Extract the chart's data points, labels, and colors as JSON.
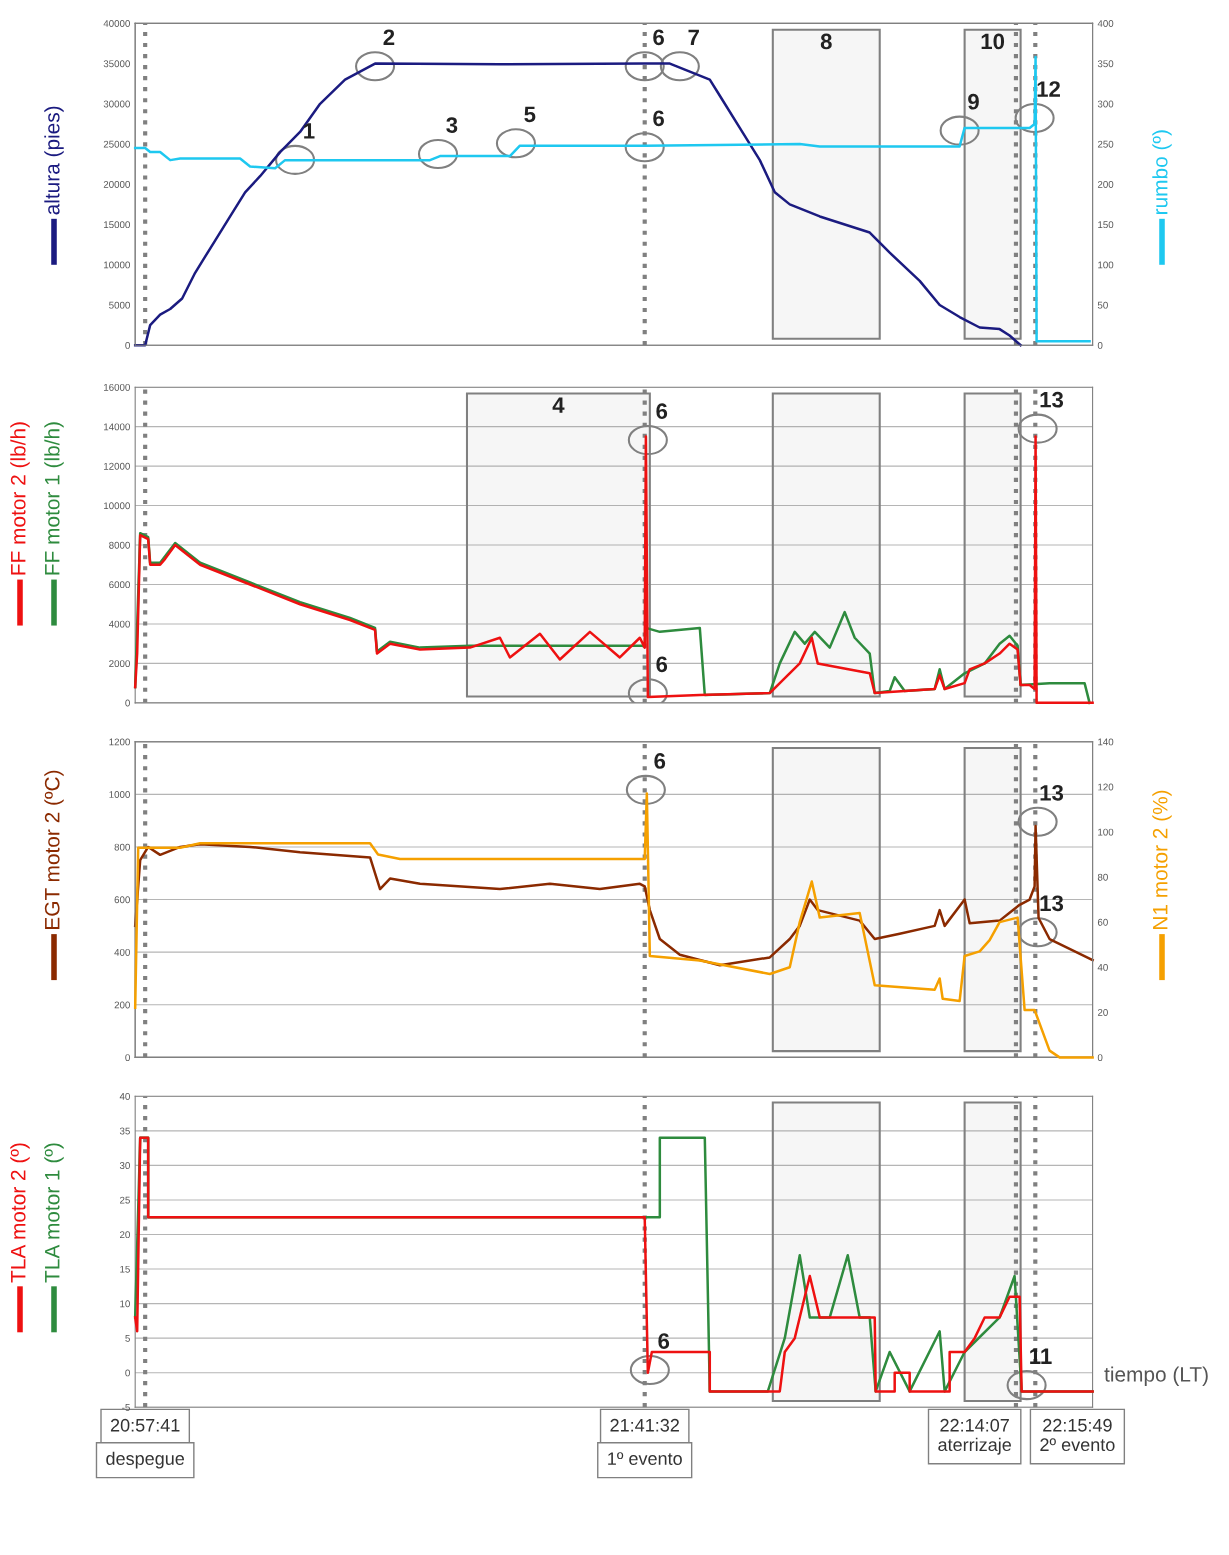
{
  "chart_data": [
    {
      "type": "line",
      "xlim": [
        20.9468,
        22.3474
      ],
      "ylim": [
        0,
        40000
      ],
      "yticks": [
        0,
        5000,
        10000,
        15000,
        20000,
        25000,
        30000,
        35000,
        40000
      ],
      "y2lim": [
        0,
        400
      ],
      "y2ticks": [
        0,
        50,
        100,
        150,
        200,
        250,
        300,
        350,
        400
      ],
      "tick_labels": "y",
      "series": [
        {
          "name": "altura (pies)",
          "color": "#1b1b80",
          "x": [
            20.9468,
            20.9614,
            20.9687,
            20.9833,
            20.998,
            21.0155,
            21.0345,
            21.0491,
            21.0637,
            21.0857,
            21.1076,
            21.1295,
            21.1588,
            21.188,
            21.2173,
            21.2538,
            21.2977,
            21.4804,
            21.6922,
            21.729,
            21.7582,
            21.7874,
            21.8021,
            21.8313,
            21.8606,
            21.8825,
            21.9044,
            21.9483,
            22.0214,
            22.0506,
            22.0945,
            22.1237,
            22.1529,
            22.1822,
            22.2114,
            22.226,
            22.2421
          ],
          "values": [
            0,
            0,
            2500,
            3800,
            4500,
            5800,
            9000,
            11000,
            13000,
            16000,
            19000,
            21000,
            24000,
            26500,
            30000,
            33000,
            35000,
            34900,
            35000,
            35000,
            34000,
            33000,
            31000,
            27000,
            23000,
            19000,
            17500,
            16000,
            14000,
            11500,
            8000,
            5000,
            3500,
            2200,
            2000,
            1200,
            0
          ]
        },
        {
          "name": "rumbo (º)",
          "color": "#1ec8f0",
          "axis": "y2",
          "x": [
            20.9468,
            20.9614,
            20.9687,
            20.9833,
            20.998,
            21.0126,
            21.1003,
            21.1149,
            21.1515,
            21.1661,
            21.3781,
            21.3927,
            21.495,
            21.5096,
            21.6922,
            21.919,
            21.9483,
            22.1529,
            22.1602,
            22.2553,
            22.2626,
            22.264,
            22.2655,
            22.343
          ],
          "values": [
            245,
            245,
            240,
            240,
            230,
            232,
            232,
            222,
            220,
            230,
            230,
            235,
            235,
            248,
            248,
            250,
            247,
            247,
            270,
            270,
            275,
            358,
            5,
            5
          ]
        }
      ],
      "ref_lines": [
        {
          "axis": "x",
          "value": 20.9614,
          "color": "#808080",
          "line_style": "dotted"
        },
        {
          "axis": "x",
          "value": 21.6922,
          "color": "#808080",
          "line_style": "dotted"
        },
        {
          "axis": "x",
          "value": 22.2353,
          "color": "#808080",
          "line_style": "dotted"
        },
        {
          "axis": "x",
          "value": 22.2636,
          "color": "#808080",
          "line_style": "dotted"
        }
      ],
      "bands": [
        {
          "axis": "x",
          "from": 21.8796,
          "to": 22.036,
          "label": "8",
          "color": "#808080"
        },
        {
          "axis": "x",
          "from": 22.1602,
          "to": 22.2421,
          "label": "10",
          "color": "#808080"
        }
      ],
      "annotations": [
        {
          "text": "1",
          "x": 21.1807,
          "y": 23030
        },
        {
          "text": "2",
          "x": 21.2977,
          "y": 34670
        },
        {
          "text": "3",
          "x": 21.3898,
          "y": 23760
        },
        {
          "text": "5",
          "x": 21.5038,
          "y": 25090
        },
        {
          "text": "6",
          "x": 21.6922,
          "y": 34670
        },
        {
          "text": "6",
          "x": 21.6922,
          "y": 24600
        },
        {
          "text": "7",
          "x": 21.7436,
          "y": 34670
        },
        {
          "text": "9",
          "x": 22.1529,
          "y": 26670
        },
        {
          "text": "12",
          "x": 22.2626,
          "y": 28240
        }
      ]
    },
    {
      "type": "line",
      "xlim": [
        20.9468,
        22.3474
      ],
      "ylim": [
        0,
        16000
      ],
      "yticks": [
        0,
        2000,
        4000,
        6000,
        8000,
        10000,
        12000,
        14000,
        16000
      ],
      "tick_labels": "y",
      "grid": "y",
      "series": [
        {
          "name": "FF motor 1 (lb/h)",
          "color": "#2e8b3e",
          "x": [
            20.9468,
            20.9541,
            20.9658,
            20.9687,
            20.9833,
            21.0053,
            21.0418,
            21.1149,
            21.188,
            21.2611,
            21.2977,
            21.3006,
            21.3196,
            21.3635,
            21.4366,
            21.6922,
            21.6939,
            21.7143,
            21.7728,
            21.7801,
            21.8752,
            21.8898,
            21.9117,
            21.9263,
            21.941,
            21.9629,
            21.9848,
            21.9994,
            22.0214,
            22.0287,
            22.0506,
            22.0579,
            22.0725,
            22.1164,
            22.1237,
            22.131,
            22.1602,
            22.1895,
            22.2114,
            22.226,
            22.2377,
            22.2421,
            22.2845,
            22.3357,
            22.343
          ],
          "values": [
            800,
            8600,
            8400,
            7100,
            7100,
            8100,
            7100,
            6100,
            5100,
            4300,
            3800,
            2600,
            3100,
            2800,
            2900,
            2900,
            3800,
            3600,
            3800,
            400,
            500,
            2000,
            3600,
            3000,
            3600,
            2800,
            4600,
            3300,
            2500,
            500,
            600,
            1300,
            600,
            700,
            1700,
            700,
            1500,
            2000,
            3000,
            3400,
            2900,
            900,
            1000,
            1000,
            0
          ]
        },
        {
          "name": "FF motor 2 (lb/h)",
          "color": "#ee1111",
          "x": [
            20.9468,
            20.9497,
            20.9541,
            20.9658,
            20.9687,
            20.9833,
            20.9906,
            21.0053,
            21.0126,
            21.0418,
            21.1149,
            21.188,
            21.2611,
            21.2977,
            21.3006,
            21.3196,
            21.3635,
            21.4366,
            21.4804,
            21.495,
            21.5389,
            21.5681,
            21.612,
            21.6558,
            21.6851,
            21.6922,
            21.6939,
            21.6968,
            21.7728,
            21.8752,
            21.8898,
            21.919,
            21.9366,
            21.9453,
            22.0214,
            22.0287,
            22.1164,
            22.1237,
            22.131,
            22.1602,
            22.1676,
            22.1895,
            22.2114,
            22.226,
            22.2377,
            22.2421,
            22.2553,
            22.2626,
            22.264,
            22.2655,
            22.3474
          ],
          "values": [
            800,
            2500,
            8500,
            8300,
            7000,
            7000,
            7300,
            8000,
            7800,
            7000,
            6000,
            5000,
            4200,
            3700,
            2500,
            3000,
            2700,
            2800,
            3300,
            2300,
            3500,
            2200,
            3600,
            2300,
            3300,
            2800,
            13500,
            300,
            400,
            500,
            1000,
            2000,
            3300,
            2000,
            1500,
            500,
            700,
            1400,
            700,
            1000,
            1700,
            2000,
            2500,
            3000,
            2700,
            900,
            900,
            700,
            13500,
            0,
            0
          ]
        }
      ],
      "ref_lines": [
        {
          "axis": "x",
          "value": 20.9614,
          "color": "#808080",
          "line_style": "dotted"
        },
        {
          "axis": "x",
          "value": 21.6922,
          "color": "#808080",
          "line_style": "dotted"
        },
        {
          "axis": "x",
          "value": 22.2353,
          "color": "#808080",
          "line_style": "dotted"
        },
        {
          "axis": "x",
          "value": 22.2636,
          "color": "#808080",
          "line_style": "dotted"
        }
      ],
      "bands": [
        {
          "axis": "x",
          "from": 21.4322,
          "to": 21.6997,
          "label": "4",
          "color": "#808080"
        },
        {
          "axis": "x",
          "from": 21.8796,
          "to": 22.036,
          "color": "#808080"
        },
        {
          "axis": "x",
          "from": 22.1602,
          "to": 22.2421,
          "color": "#808080"
        }
      ],
      "annotations": [
        {
          "text": "6",
          "x": 21.6968,
          "y": 13320
        },
        {
          "text": "6",
          "x": 21.6968,
          "y": 490
        },
        {
          "text": "13",
          "x": 22.267,
          "y": 13900
        }
      ]
    },
    {
      "type": "line",
      "xlim": [
        20.9468,
        22.3474
      ],
      "ylim": [
        0,
        1200
      ],
      "yticks": [
        0,
        200,
        400,
        600,
        800,
        1000,
        1200
      ],
      "y2lim": [
        0,
        140
      ],
      "y2ticks": [
        0,
        20,
        40,
        60,
        80,
        100,
        120,
        140
      ],
      "tick_labels": "y",
      "grid": "y",
      "series": [
        {
          "name": "EGT motor 2 (ºC)",
          "color": "#8b2a00",
          "x": [
            20.9468,
            20.9541,
            20.9658,
            20.9833,
            21.0126,
            21.0418,
            21.1149,
            21.188,
            21.2904,
            21.305,
            21.3196,
            21.3635,
            21.4804,
            21.5535,
            21.6266,
            21.6851,
            21.6922,
            21.6997,
            21.7143,
            21.7436,
            21.8021,
            21.8752,
            21.9044,
            21.919,
            21.9337,
            21.9453,
            22.0067,
            22.0287,
            22.0652,
            22.1164,
            22.1237,
            22.131,
            22.1602,
            22.1676,
            22.2114,
            22.226,
            22.2407,
            22.2553,
            22.2626,
            22.264,
            22.2684,
            22.2845,
            22.3474
          ],
          "values": [
            500,
            750,
            800,
            770,
            800,
            810,
            800,
            780,
            760,
            640,
            680,
            660,
            640,
            660,
            640,
            660,
            650,
            560,
            450,
            390,
            350,
            380,
            450,
            500,
            600,
            560,
            520,
            450,
            470,
            500,
            560,
            500,
            600,
            510,
            520,
            550,
            580,
            600,
            650,
            880,
            530,
            450,
            370
          ]
        },
        {
          "name": "N1 motor 2 (%)",
          "color": "#f5a000",
          "axis": "y2",
          "x": [
            20.9468,
            20.9512,
            21.0126,
            21.0418,
            21.2904,
            21.3021,
            21.3342,
            21.6922,
            21.6953,
            21.6997,
            21.7728,
            21.8752,
            21.9044,
            21.919,
            21.9366,
            21.9483,
            22.0067,
            22.0287,
            22.1164,
            22.1237,
            22.1281,
            22.1529,
            22.1602,
            22.1822,
            22.1968,
            22.2114,
            22.2377,
            22.248,
            22.2626,
            22.2845,
            22.2991,
            22.3474
          ],
          "values": [
            22,
            93,
            93,
            95,
            95,
            90,
            88,
            88,
            117,
            45,
            43,
            37,
            40,
            60,
            78,
            62,
            64,
            32,
            30,
            35,
            26,
            25,
            45,
            47,
            52,
            60,
            62,
            21,
            21,
            3,
            0,
            0
          ]
        }
      ],
      "ref_lines": [
        {
          "axis": "x",
          "value": 20.9614,
          "color": "#808080",
          "line_style": "dotted"
        },
        {
          "axis": "x",
          "value": 21.6922,
          "color": "#808080",
          "line_style": "dotted"
        },
        {
          "axis": "x",
          "value": 22.2353,
          "color": "#808080",
          "line_style": "dotted"
        },
        {
          "axis": "x",
          "value": 22.2636,
          "color": "#808080",
          "line_style": "dotted"
        }
      ],
      "bands": [
        {
          "axis": "x",
          "from": 21.8796,
          "to": 22.036,
          "color": "#808080"
        },
        {
          "axis": "x",
          "from": 22.1602,
          "to": 22.2421,
          "color": "#808080"
        }
      ],
      "annotations": [
        {
          "text": "6",
          "x": 21.6939,
          "y": 1017
        },
        {
          "text": "13",
          "x": 22.267,
          "y": 896
        },
        {
          "text": "13",
          "x": 22.267,
          "y": 476
        }
      ]
    },
    {
      "type": "line",
      "xlim": [
        20.9468,
        22.3474
      ],
      "xticks": [
        {
          "value": 20.9614,
          "label": "20:57:41"
        },
        {
          "value": 21.6922,
          "label": "21:41:32"
        }
      ],
      "ylim": [
        -5,
        40
      ],
      "yticks": [
        -5,
        0,
        5,
        10,
        15,
        20,
        25,
        30,
        35,
        40
      ],
      "grid": "y",
      "xlabel": "tiempo (LT)",
      "series": [
        {
          "name": "TLA motor 1 (º)",
          "color": "#2e8b3e",
          "x": [
            20.9468,
            20.9541,
            20.9658,
            20.9658,
            21.7143,
            21.7143,
            21.7801,
            21.7874,
            21.8723,
            21.8971,
            21.919,
            21.9337,
            21.9629,
            21.9892,
            22.0067,
            22.0214,
            22.0301,
            22.0506,
            22.0798,
            22.1237,
            22.131,
            22.1602,
            22.2114,
            22.2333,
            22.2436,
            22.3474
          ],
          "values": [
            8,
            34,
            34,
            22.5,
            22.5,
            34,
            34,
            -2.7,
            -2.7,
            5,
            17,
            8,
            8,
            17,
            8,
            8,
            -2.7,
            3,
            -2.7,
            6,
            -2.7,
            3,
            8,
            14,
            -2.7,
            -2.7
          ]
        },
        {
          "name": "TLA motor 2 (º)",
          "color": "#ee1111",
          "x": [
            20.9468,
            20.9497,
            20.9541,
            20.9658,
            20.9658,
            21.6922,
            21.6968,
            21.7026,
            21.7874,
            21.7874,
            21.8898,
            21.8971,
            21.9117,
            21.919,
            21.9337,
            21.9483,
            22.0287,
            22.0301,
            22.0579,
            22.0579,
            22.0798,
            22.0798,
            22.1383,
            22.1383,
            22.1602,
            22.1749,
            22.1895,
            22.2114,
            22.226,
            22.2407,
            22.2436,
            22.3474
          ],
          "values": [
            8,
            6,
            34,
            34,
            22.5,
            22.5,
            0,
            3,
            3,
            -2.7,
            -2.7,
            3,
            5,
            8,
            14,
            8,
            8,
            -2.7,
            -2.7,
            0,
            0,
            -2.7,
            -2.7,
            3,
            3,
            5,
            8,
            8,
            11,
            11,
            -2.7,
            -2.7
          ]
        }
      ],
      "ref_lines": [
        {
          "axis": "x",
          "value": 20.9614,
          "label": "despegue",
          "color": "#808080",
          "line_style": "dotted"
        },
        {
          "axis": "x",
          "value": 21.6922,
          "label": "1º evento",
          "color": "#808080",
          "line_style": "dotted"
        },
        {
          "axis": "x",
          "value": 22.2353,
          "label": "22:14:07\naterrizaje",
          "color": "#808080",
          "line_style": "dotted"
        },
        {
          "axis": "x",
          "value": 22.2636,
          "label": "22:15:49\n2º evento",
          "color": "#808080",
          "line_style": "dotted"
        }
      ],
      "bands": [
        {
          "axis": "x",
          "from": 21.8796,
          "to": 22.036,
          "color": "#808080"
        },
        {
          "axis": "x",
          "from": 22.1602,
          "to": 22.2421,
          "color": "#808080"
        }
      ],
      "annotations": [
        {
          "text": "6",
          "x": 21.6997,
          "y": 0.4
        },
        {
          "text": "11",
          "x": 22.2509,
          "y": -1.8
        }
      ]
    }
  ]
}
